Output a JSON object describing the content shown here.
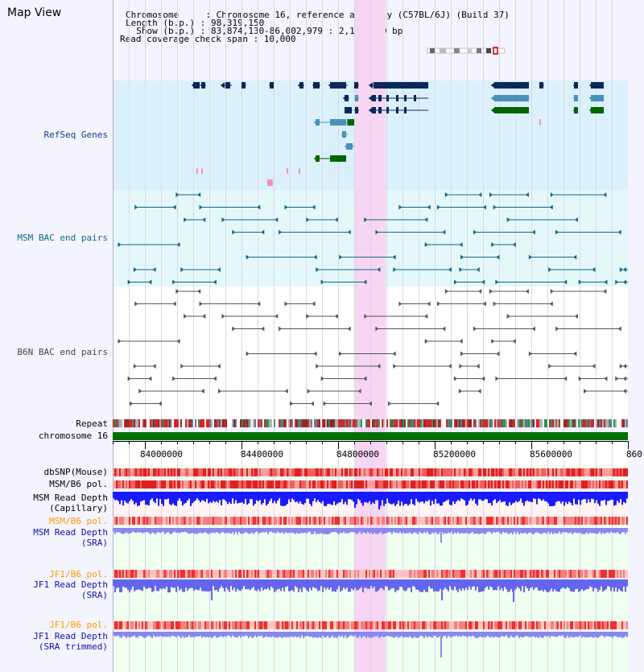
{
  "title": "Map View",
  "info": {
    "chromosome": "Chromosome     : Chromosome 16, reference assembly (C57BL/6J) (Build 37)",
    "length": "Length (b.p.) : 98,319,150",
    "show": "  Show (b.p.) : 83,874,130-86,002,979 : 2,128,850 bp",
    "coverage": "Read coverage check span : 10,000"
  },
  "tracks": {
    "refseq": {
      "label": "RefSeq Genes",
      "color": "#0a3a8a"
    },
    "msm_bac": {
      "label": "MSM BAC end pairs",
      "color": "#116688"
    },
    "b6n_bac": {
      "label": "B6N BAC end pairs",
      "color": "#444444"
    },
    "repeat": {
      "label": "Repeat"
    },
    "chrom": {
      "label": "chromosome 16",
      "color": "#116611"
    },
    "dbsnp": {
      "label": "dbSNP(Mouse)"
    },
    "msm_pol": {
      "label": "MSM/B6 pol."
    },
    "msm_depth_cap": {
      "label1": "MSM Read Depth",
      "label2": "(Capillary)"
    },
    "msm_pol2": {
      "label": "MSM/B6 pol.",
      "color": "#ff9900"
    },
    "msm_depth_sra": {
      "label1": "MSM Read Depth",
      "label2": "(SRA)",
      "color": "#1010a8"
    },
    "jf1_pol": {
      "label": "JF1/B6 pol.",
      "color": "#ff9900"
    },
    "jf1_depth_sra": {
      "label1": "JF1 Read Depth",
      "label2": "(SRA)",
      "color": "#1010a8"
    },
    "jf1_pol2": {
      "label": "JF1/B6 pol.",
      "color": "#ff9900"
    },
    "jf1_depth_trim": {
      "label1": "JF1 Read Depth",
      "label2": "(SRA trimmed)",
      "color": "#1010a8"
    }
  },
  "axis": {
    "ticks": [
      "84000000",
      "84400000",
      "84800000",
      "85200000",
      "85600000",
      "860"
    ]
  },
  "colors": {
    "highlight": "#f6d6f2",
    "refseq_bg": "#dbf0fa",
    "bac_bg": "#e4f8fa",
    "depth_cap": "#1a1aff",
    "depth_sra": "#8888ee",
    "depth_jf1": "#6464ee"
  }
}
